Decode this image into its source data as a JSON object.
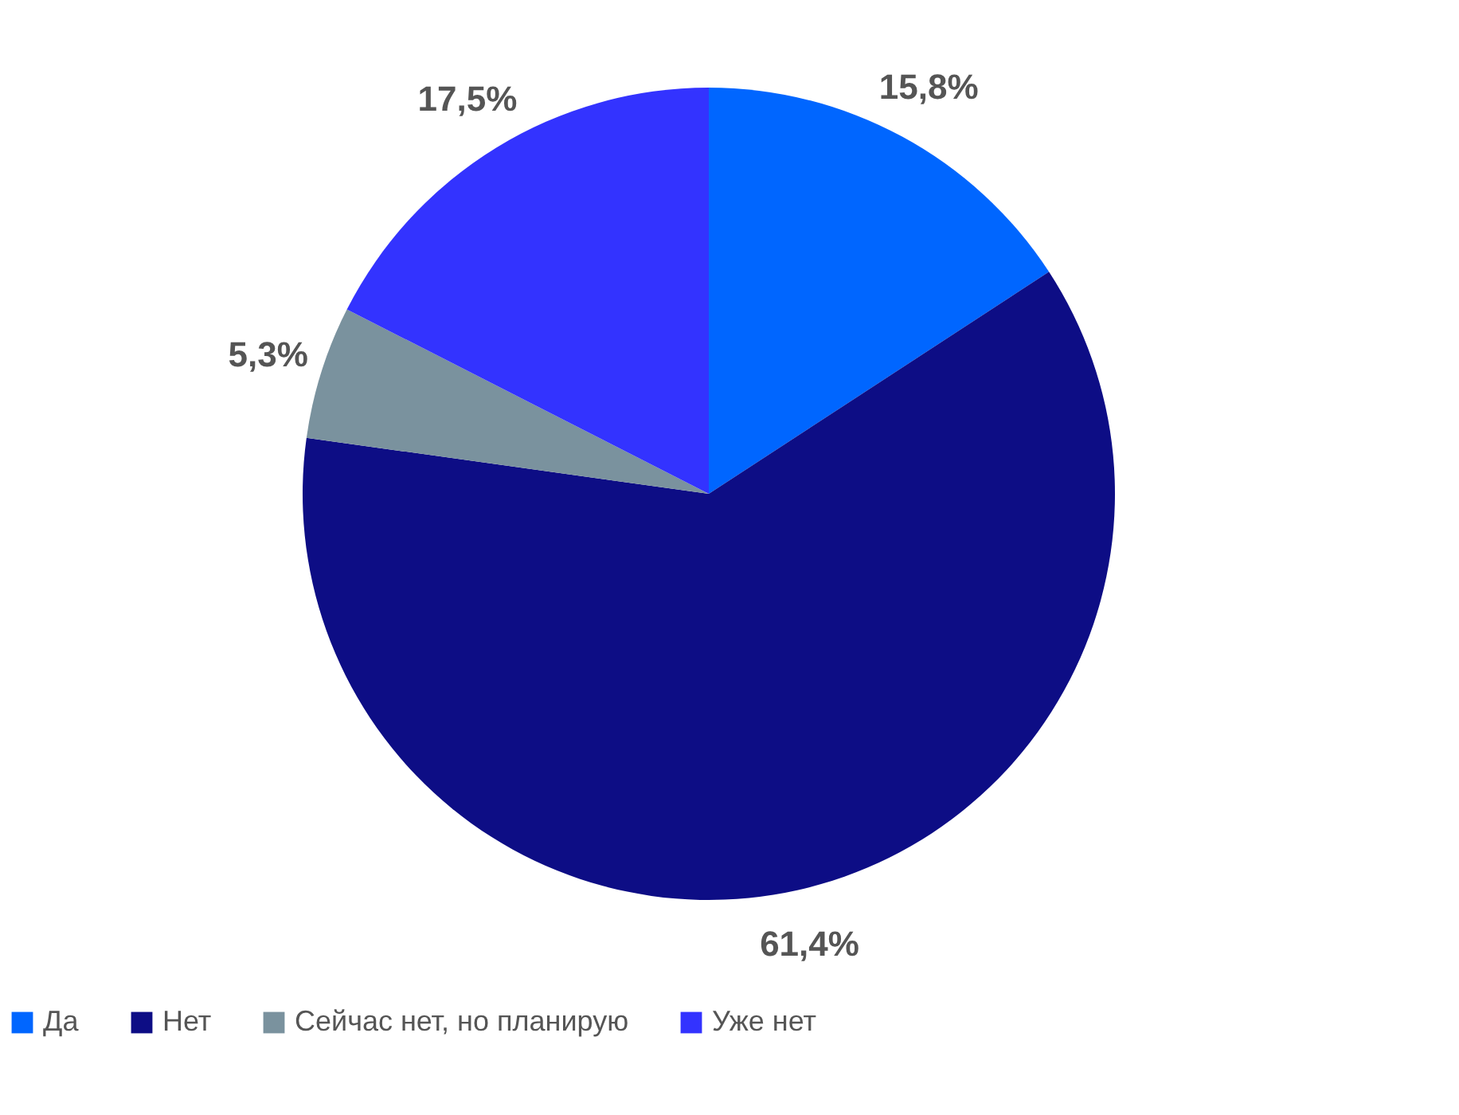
{
  "chart_data": {
    "type": "pie",
    "categories": [
      "Да",
      "Нет",
      "Сейчас нет, но планирую",
      "Уже нет"
    ],
    "values": [
      15.8,
      61.4,
      5.3,
      17.5
    ],
    "colors": [
      "#0066ff",
      "#0d0d85",
      "#7a929e",
      "#3333ff"
    ],
    "value_labels": [
      "15,8%",
      "61,4%",
      "5,3%",
      "17,5%"
    ],
    "legend": "bottom"
  }
}
